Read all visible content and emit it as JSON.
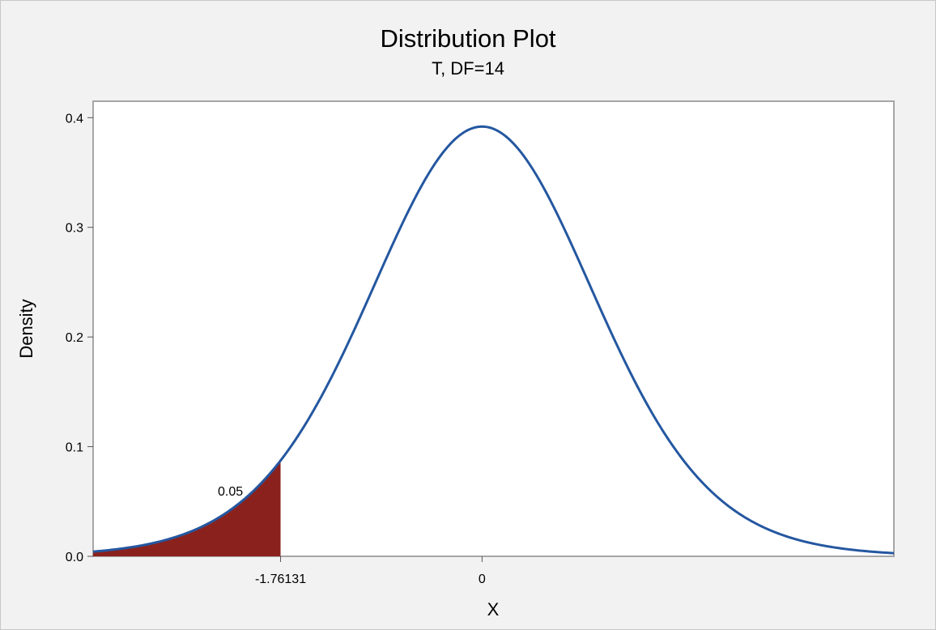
{
  "chart_data": {
    "type": "area",
    "title": "Distribution Plot",
    "subtitle": "T, DF=14",
    "xlabel": "X",
    "ylabel": "Density",
    "distribution": "T",
    "df": 14,
    "xlim": [
      -3.4,
      3.6
    ],
    "ylim": [
      0,
      0.415
    ],
    "yticks": [
      0.0,
      0.1,
      0.2,
      0.3,
      0.4
    ],
    "ytick_labels": [
      "0.0",
      "0.1",
      "0.2",
      "0.3",
      "0.4"
    ],
    "xticks": [
      -1.76131,
      0
    ],
    "xtick_labels": [
      "-1.76131",
      "0"
    ],
    "shaded_region": {
      "from": -3.4,
      "to": -1.76131,
      "area": 0.05,
      "label": "0.05"
    },
    "curve_color": "#2457a0",
    "shade_color": "#8b211d",
    "grid": false,
    "legend": "none"
  }
}
